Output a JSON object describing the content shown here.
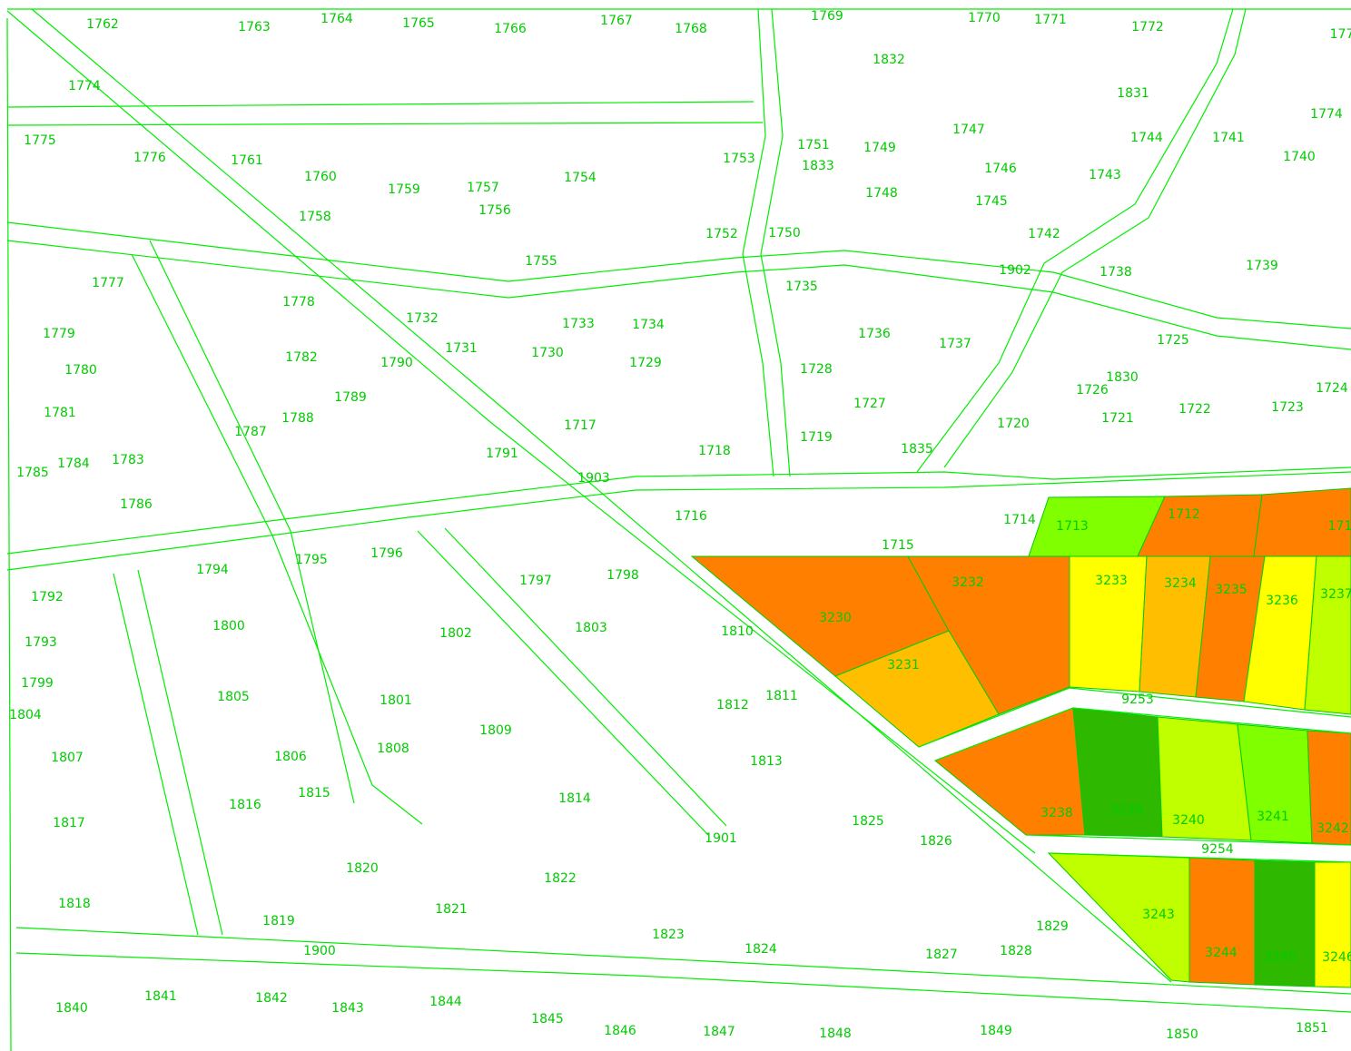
{
  "labels": [
    "1762",
    "1763",
    "1764",
    "1765",
    "1766",
    "1767",
    "1768",
    "1769",
    "1832",
    "1770",
    "1771",
    "1772",
    "177",
    "1774",
    "1831",
    "1774",
    "1775",
    "1776",
    "1761",
    "1760",
    "1759",
    "1757",
    "1754",
    "1753",
    "1751",
    "1749",
    "1833",
    "1747",
    "1744",
    "1741",
    "1740",
    "1746",
    "1743",
    "1748",
    "1745",
    "1758",
    "1756",
    "1752",
    "1750",
    "1742",
    "1755",
    "1902",
    "1738",
    "1739",
    "1777",
    "1735",
    "1778",
    "1732",
    "1733",
    "1734",
    "1736",
    "1737",
    "1725",
    "1779",
    "1731",
    "1730",
    "1782",
    "1790",
    "1729",
    "1780",
    "1728",
    "1830",
    "1726",
    "1724",
    "1789",
    "1727",
    "1722",
    "1723",
    "1781",
    "1788",
    "1721",
    "1720",
    "1717",
    "1787",
    "1719",
    "1718",
    "1835",
    "1791",
    "1783",
    "1784",
    "1785",
    "1903",
    "1786",
    "1716",
    "1714",
    "1713",
    "1712",
    "171",
    "1715",
    "1795",
    "1796",
    "1794",
    "1797",
    "1798",
    "3232",
    "3233",
    "3234",
    "3235",
    "3236",
    "3237",
    "1792",
    "3230",
    "1800",
    "1803",
    "1810",
    "1802",
    "1793",
    "3231",
    "1799",
    "1811",
    "1805",
    "1801",
    "9253",
    "1812",
    "1804",
    "1809",
    "1808",
    "1806",
    "1807",
    "1813",
    "1815",
    "1814",
    "1816",
    "3238",
    "3239",
    "3240",
    "3241",
    "3242",
    "1825",
    "1817",
    "1901",
    "1826",
    "9254",
    "1820",
    "1822",
    "1818",
    "1821",
    "3243",
    "1819",
    "1829",
    "1823",
    "1900",
    "1824",
    "1828",
    "1827",
    "3244",
    "3245",
    "3246",
    "1841",
    "1842",
    "1844",
    "1840",
    "1843",
    "1845",
    "1846",
    "1847",
    "1848",
    "1849",
    "1850",
    "1851"
  ]
}
